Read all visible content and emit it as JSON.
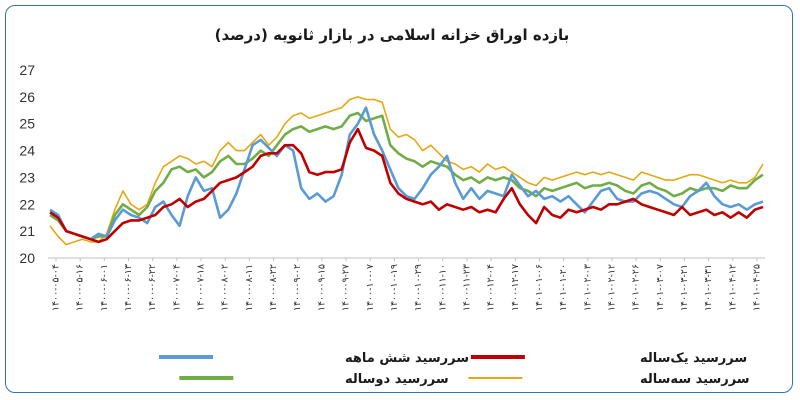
{
  "chart_data": {
    "type": "line",
    "title": "بازده اوراق خزانه اسلامی در بازار ثانویه (درصد)",
    "xlabel": "",
    "ylabel": "",
    "ylim": [
      20,
      27
    ],
    "yticks": [
      20,
      21,
      22,
      23,
      24,
      25,
      26,
      27
    ],
    "grid": false,
    "legend_position": "bottom",
    "x_tick_labels": [
      "۱۴۰۰-۰۵-۰۴",
      "۱۴۰۰-۰۵-۱۶",
      "۱۴۰۰-۰۶-۰۱",
      "۱۴۰۰-۰۶-۱۳",
      "۱۴۰۰-۰۶-۲۲",
      "۱۴۰۰-۰۷-۰۴",
      "۱۴۰۰-۰۷-۱۸",
      "۱۴۰۰-۰۸-۰۲",
      "۱۴۰۰-۰۸-۱۱",
      "۱۴۰۰-۰۸-۲۲",
      "۱۴۰۰-۰۹-۰۲",
      "۱۴۰۰-۰۹-۱۵",
      "۱۴۰۰-۰۹-۲۷",
      "۱۴۰۰-۱۰-۰۷",
      "۱۴۰۰-۱۰-۱۹",
      "۱۴۰۰-۱۰-۲۹",
      "۱۴۰۰-۱۱-۱۰",
      "۱۴۰۰-۱۱-۲۳",
      "۱۴۰۰-۱۲-۰۴",
      "۱۴۰۰-۱۲-۱۷",
      "۱۴۰۱-۰۱-۰۶",
      "۱۴۰۱-۰۱-۲۰",
      "۱۴۰۱-۰۲-۰۳",
      "۱۴۰۱-۰۲-۱۲",
      "۱۴۰۱-۰۲-۲۶",
      "۱۴۰۱-۰۳-۰۷",
      "۱۴۰۱-۰۳-۲۱",
      "۱۴۰۱-۰۳-۳۱",
      "۱۴۰۱-۰۴-۱۲",
      "۱۴۰۱-۰۴-۲۵"
    ],
    "series": [
      {
        "name": "سررسید  شش ماهه",
        "color": "#5b9bd5",
        "values": [
          21.8,
          21.6,
          21.0,
          20.9,
          20.8,
          20.7,
          20.9,
          20.8,
          21.4,
          21.8,
          21.6,
          21.5,
          21.3,
          21.9,
          22.1,
          21.6,
          21.2,
          22.3,
          23.0,
          22.5,
          22.6,
          21.5,
          21.8,
          22.4,
          23.3,
          24.2,
          24.4,
          24.1,
          23.8,
          24.2,
          24.0,
          22.6,
          22.2,
          22.4,
          22.1,
          22.3,
          23.1,
          24.6,
          25.0,
          25.6,
          24.6,
          24.0,
          23.3,
          22.6,
          22.3,
          22.2,
          22.6,
          23.1,
          23.4,
          23.8,
          22.8,
          22.2,
          22.6,
          22.2,
          22.5,
          22.4,
          22.3,
          23.1,
          22.7,
          22.3,
          22.5,
          22.2,
          22.3,
          22.1,
          22.3,
          22.0,
          21.7,
          22.1,
          22.5,
          22.6,
          22.2,
          22.1,
          22.1,
          22.4,
          22.5,
          22.4,
          22.2,
          22.0,
          21.9,
          22.3,
          22.5,
          22.8,
          22.3,
          22.0,
          21.9,
          22.0,
          21.8,
          22.0,
          22.1
        ]
      },
      {
        "name": "سررسید یک‌ساله",
        "color": "#c00000",
        "values": [
          21.7,
          21.5,
          21.0,
          20.9,
          20.8,
          20.7,
          20.6,
          20.7,
          21.0,
          21.3,
          21.4,
          21.4,
          21.5,
          21.6,
          21.9,
          22.0,
          22.2,
          21.9,
          22.1,
          22.2,
          22.5,
          22.8,
          22.9,
          23.0,
          23.2,
          23.4,
          23.8,
          23.9,
          23.9,
          24.2,
          24.2,
          23.9,
          23.2,
          23.1,
          23.2,
          23.2,
          23.3,
          24.3,
          24.8,
          24.1,
          24.0,
          23.8,
          22.8,
          22.4,
          22.2,
          22.1,
          22.0,
          22.1,
          21.8,
          22.0,
          21.9,
          21.8,
          21.9,
          21.7,
          21.8,
          21.7,
          22.2,
          22.6,
          22.0,
          21.6,
          21.3,
          21.9,
          21.6,
          21.5,
          21.8,
          21.7,
          21.8,
          21.9,
          21.8,
          22.0,
          22.0,
          22.1,
          22.2,
          22.0,
          21.9,
          21.8,
          21.7,
          21.6,
          21.9,
          21.6,
          21.7,
          21.8,
          21.6,
          21.7,
          21.5,
          21.7,
          21.5,
          21.8,
          21.9
        ]
      },
      {
        "name": "سررسید دوساله",
        "color": "#70ad47",
        "values": [
          21.6,
          21.4,
          21.0,
          20.9,
          20.8,
          20.7,
          20.8,
          20.8,
          21.6,
          22.0,
          21.8,
          21.6,
          21.9,
          22.5,
          22.8,
          23.3,
          23.4,
          23.2,
          23.3,
          23.0,
          23.2,
          23.6,
          23.8,
          23.5,
          23.5,
          23.7,
          24.0,
          23.8,
          24.2,
          24.6,
          24.8,
          24.9,
          24.7,
          24.8,
          24.9,
          24.8,
          24.9,
          25.3,
          25.4,
          25.1,
          25.2,
          25.3,
          24.2,
          23.9,
          23.7,
          23.6,
          23.4,
          23.6,
          23.5,
          23.4,
          23.1,
          22.9,
          23.0,
          22.8,
          23.0,
          22.9,
          23.0,
          22.9,
          22.6,
          22.5,
          22.3,
          22.6,
          22.5,
          22.6,
          22.7,
          22.8,
          22.6,
          22.7,
          22.7,
          22.8,
          22.7,
          22.5,
          22.4,
          22.7,
          22.8,
          22.6,
          22.5,
          22.3,
          22.4,
          22.6,
          22.5,
          22.6,
          22.6,
          22.5,
          22.7,
          22.6,
          22.6,
          22.9,
          23.1
        ]
      },
      {
        "name": "سررسید سه‌ساله",
        "color": "#e5a812",
        "values": [
          21.2,
          20.8,
          20.5,
          20.6,
          20.7,
          20.6,
          20.6,
          20.9,
          21.8,
          22.5,
          22.0,
          21.8,
          22.0,
          22.8,
          23.4,
          23.6,
          23.8,
          23.7,
          23.5,
          23.6,
          23.4,
          24.0,
          24.3,
          24.0,
          24.0,
          24.3,
          24.6,
          24.2,
          24.5,
          25.0,
          25.3,
          25.4,
          25.2,
          25.3,
          25.4,
          25.5,
          25.6,
          25.9,
          26.0,
          25.9,
          25.9,
          25.8,
          24.8,
          24.5,
          24.6,
          24.4,
          24.0,
          24.2,
          23.9,
          23.6,
          23.5,
          23.3,
          23.4,
          23.2,
          23.5,
          23.3,
          23.4,
          23.2,
          23.0,
          22.8,
          22.7,
          23.0,
          22.9,
          23.0,
          23.1,
          23.2,
          23.1,
          23.2,
          23.1,
          23.2,
          23.1,
          23.0,
          22.9,
          23.2,
          23.1,
          23.0,
          22.9,
          22.9,
          23.0,
          23.1,
          23.1,
          23.0,
          22.9,
          22.8,
          22.9,
          22.8,
          22.8,
          23.0,
          23.5
        ]
      }
    ]
  }
}
